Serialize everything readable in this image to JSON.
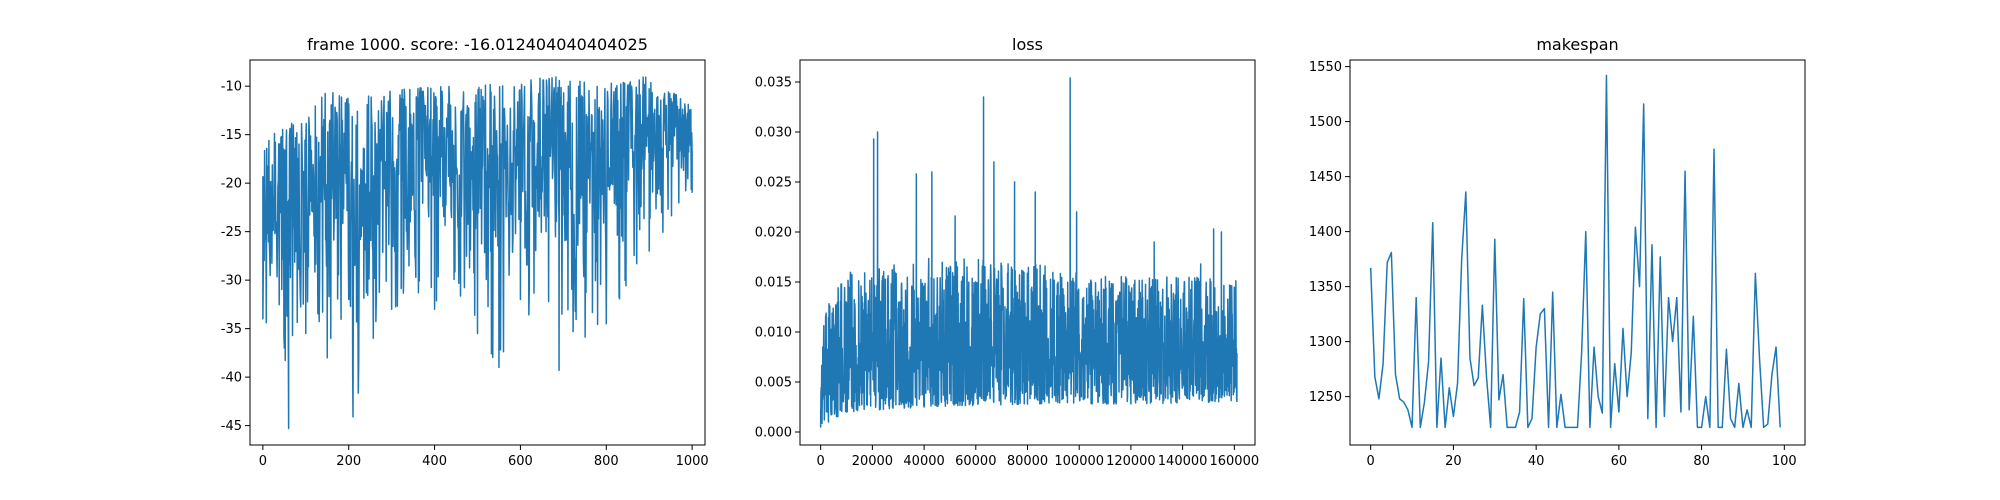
{
  "chart_data": [
    {
      "type": "line",
      "title": "frame 1000. score: -16.012404040404025",
      "xlabel": "",
      "ylabel": "",
      "xlim": [
        -30,
        1030
      ],
      "ylim": [
        -47,
        -7.3
      ],
      "xticks": [
        0,
        200,
        400,
        600,
        800,
        1000
      ],
      "yticks": [
        -45,
        -40,
        -35,
        -30,
        -25,
        -20,
        -15,
        -10
      ],
      "grid": false,
      "series": [
        {
          "color": "#1f77b4",
          "note": "noisy episode-score trace, ~1000 episodes, values mostly between -35 and -10, with dips to -45 near x=60 and -44 near x=210",
          "x_range": [
            0,
            1000
          ],
          "envelope": [
            {
              "x": 0,
              "low": -34,
              "high": -15
            },
            {
              "x": 50,
              "low": -37,
              "high": -14
            },
            {
              "x": 60,
              "low": -45.3,
              "high": -14
            },
            {
              "x": 100,
              "low": -35.5,
              "high": -13
            },
            {
              "x": 150,
              "low": -38,
              "high": -10.5
            },
            {
              "x": 200,
              "low": -32,
              "high": -11
            },
            {
              "x": 210,
              "low": -44.1,
              "high": -11
            },
            {
              "x": 300,
              "low": -33,
              "high": -10.5
            },
            {
              "x": 400,
              "low": -33,
              "high": -9.8
            },
            {
              "x": 500,
              "low": -35.5,
              "high": -10
            },
            {
              "x": 550,
              "low": -39,
              "high": -9.7
            },
            {
              "x": 600,
              "low": -32,
              "high": -9.5
            },
            {
              "x": 690,
              "low": -39.3,
              "high": -8.9
            },
            {
              "x": 800,
              "low": -34.5,
              "high": -9.5
            },
            {
              "x": 900,
              "low": -27,
              "high": -9
            },
            {
              "x": 1000,
              "low": -21,
              "high": -12
            }
          ]
        }
      ]
    },
    {
      "type": "line",
      "title": "loss",
      "xlabel": "",
      "ylabel": "",
      "xlim": [
        -8000,
        168000
      ],
      "ylim": [
        -0.0013,
        0.0372
      ],
      "xticks": [
        0,
        20000,
        40000,
        60000,
        80000,
        100000,
        120000,
        140000,
        160000
      ],
      "yticks": [
        0.0,
        0.005,
        0.01,
        0.015,
        0.02,
        0.025,
        0.03,
        0.035
      ],
      "ytick_labels": [
        "0.000",
        "0.005",
        "0.010",
        "0.015",
        "0.020",
        "0.025",
        "0.030",
        "0.035"
      ],
      "grid": false,
      "series": [
        {
          "color": "#1f77b4",
          "note": "dense noisy training loss over ~161000 steps; band roughly 0.003-0.014 with spikes",
          "x_range": [
            0,
            161000
          ],
          "envelope": [
            {
              "x": 0,
              "low": 0.0005,
              "high": 0.009
            },
            {
              "x": 3000,
              "low": 0.001,
              "high": 0.0135
            },
            {
              "x": 10000,
              "low": 0.002,
              "high": 0.016
            },
            {
              "x": 40000,
              "low": 0.0025,
              "high": 0.0175
            },
            {
              "x": 80000,
              "low": 0.0028,
              "high": 0.017
            },
            {
              "x": 120000,
              "low": 0.0028,
              "high": 0.0155
            },
            {
              "x": 161000,
              "low": 0.003,
              "high": 0.0155
            }
          ],
          "spikes": [
            {
              "x": 20500,
              "y": 0.0293
            },
            {
              "x": 22000,
              "y": 0.03
            },
            {
              "x": 37000,
              "y": 0.0258
            },
            {
              "x": 43000,
              "y": 0.026
            },
            {
              "x": 52000,
              "y": 0.0216
            },
            {
              "x": 63000,
              "y": 0.0335
            },
            {
              "x": 67000,
              "y": 0.027
            },
            {
              "x": 75000,
              "y": 0.025
            },
            {
              "x": 83000,
              "y": 0.024
            },
            {
              "x": 96500,
              "y": 0.0354
            },
            {
              "x": 99000,
              "y": 0.022
            },
            {
              "x": 129000,
              "y": 0.019
            },
            {
              "x": 147000,
              "y": 0.0168
            },
            {
              "x": 152000,
              "y": 0.0203
            },
            {
              "x": 155000,
              "y": 0.02
            }
          ]
        }
      ]
    },
    {
      "type": "line",
      "title": "makespan",
      "xlabel": "",
      "ylabel": "",
      "xlim": [
        -5,
        105
      ],
      "ylim": [
        1206,
        1556
      ],
      "xticks": [
        0,
        20,
        40,
        60,
        80,
        100
      ],
      "yticks": [
        1250,
        1300,
        1350,
        1400,
        1450,
        1500,
        1550
      ],
      "grid": false,
      "series": [
        {
          "color": "#1f77b4",
          "x": [
            0,
            1,
            2,
            3,
            4,
            5,
            6,
            7,
            8,
            9,
            10,
            11,
            12,
            13,
            14,
            15,
            16,
            17,
            18,
            19,
            20,
            21,
            22,
            23,
            24,
            25,
            26,
            27,
            28,
            29,
            30,
            31,
            32,
            33,
            34,
            35,
            36,
            37,
            38,
            39,
            40,
            41,
            42,
            43,
            44,
            45,
            46,
            47,
            48,
            49,
            50,
            51,
            52,
            53,
            54,
            55,
            56,
            57,
            58,
            59,
            60,
            61,
            62,
            63,
            64,
            65,
            66,
            67,
            68,
            69,
            70,
            71,
            72,
            73,
            74,
            75,
            76,
            77,
            78,
            79,
            80,
            81,
            82,
            83,
            84,
            85,
            86,
            87,
            88,
            89,
            90,
            91,
            92,
            93,
            94,
            95,
            96,
            97,
            98,
            99
          ],
          "values": [
            1367,
            1268,
            1248,
            1280,
            1372,
            1381,
            1270,
            1248,
            1245,
            1238,
            1222,
            1340,
            1222,
            1245,
            1282,
            1408,
            1222,
            1285,
            1222,
            1258,
            1232,
            1262,
            1375,
            1436,
            1285,
            1260,
            1267,
            1333,
            1268,
            1222,
            1393,
            1247,
            1270,
            1222,
            1222,
            1222,
            1236,
            1339,
            1222,
            1230,
            1295,
            1325,
            1330,
            1222,
            1345,
            1222,
            1252,
            1222,
            1222,
            1222,
            1222,
            1290,
            1400,
            1222,
            1295,
            1250,
            1235,
            1542,
            1222,
            1280,
            1236,
            1312,
            1250,
            1290,
            1404,
            1350,
            1516,
            1230,
            1388,
            1222,
            1377,
            1232,
            1340,
            1300,
            1340,
            1236,
            1455,
            1238,
            1323,
            1222,
            1222,
            1250,
            1222,
            1475,
            1222,
            1222,
            1293,
            1230,
            1222,
            1262,
            1222,
            1238,
            1222,
            1362,
            1285,
            1222,
            1225,
            1270,
            1295,
            1222
          ]
        }
      ]
    }
  ]
}
